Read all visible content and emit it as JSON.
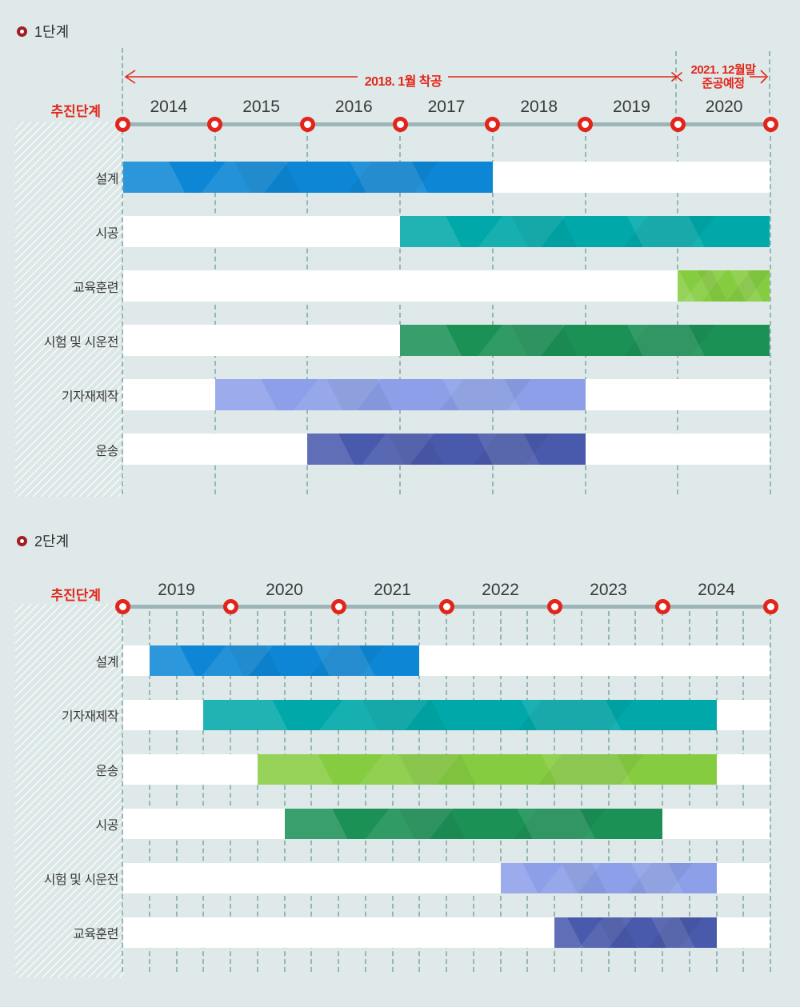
{
  "palette": {
    "background": "#dfe9e9",
    "red_accent": "#e2261a",
    "title_bullet": "#a31e23",
    "timeline_line": "#9db5b7",
    "dash_line": "#8aacae",
    "circle_ring": "#e2251b",
    "track_white": "#ffffff",
    "bar_colors": {
      "blue": "#0d87d5",
      "teal": "#00a8a9",
      "lime": "#86cc40",
      "green": "#1b9156",
      "periwinkle": "#8c9fe8",
      "indigo": "#4959ac"
    }
  },
  "chart_data": [
    {
      "type": "gantt",
      "phase_title": "1단계",
      "stage_label": "추진단계",
      "axis": {
        "start": 2014,
        "end": 2021,
        "year_labels": [
          "2014",
          "2015",
          "2016",
          "2017",
          "2018",
          "2019",
          "2020"
        ],
        "minor_tick_years": 1
      },
      "annotation": {
        "range_label": "2018. 1월 착공",
        "end_label_line1": "2021. 12월말",
        "end_label_line2": "준공예정",
        "arrow_from_year": 2014,
        "cross_year": 2020,
        "end_arrow_year": 2021
      },
      "rows": [
        {
          "label": "설계",
          "color": "blue",
          "start": 2014,
          "end": 2018
        },
        {
          "label": "시공",
          "color": "teal",
          "start": 2017,
          "end": 2021
        },
        {
          "label": "교육훈련",
          "color": "lime",
          "start": 2020,
          "end": 2021
        },
        {
          "label": "시험 및 시운전",
          "color": "green",
          "start": 2017,
          "end": 2021
        },
        {
          "label": "기자재제작",
          "color": "periwinkle",
          "start": 2015,
          "end": 2019
        },
        {
          "label": "운송",
          "color": "indigo",
          "start": 2016,
          "end": 2019
        }
      ]
    },
    {
      "type": "gantt",
      "phase_title": "2단계",
      "stage_label": "추진단계",
      "axis": {
        "start": 2019,
        "end": 2025,
        "year_labels": [
          "2019",
          "2020",
          "2021",
          "2022",
          "2023",
          "2024"
        ],
        "minor_tick_years": 0.25
      },
      "rows": [
        {
          "label": "설계",
          "color": "blue",
          "start": 2019.25,
          "end": 2021.75
        },
        {
          "label": "기자재제작",
          "color": "teal",
          "start": 2019.75,
          "end": 2024.5
        },
        {
          "label": "운송",
          "color": "lime",
          "start": 2020.25,
          "end": 2024.5
        },
        {
          "label": "시공",
          "color": "green",
          "start": 2020.5,
          "end": 2024
        },
        {
          "label": "시험 및 시운전",
          "color": "periwinkle",
          "start": 2022.5,
          "end": 2024.5
        },
        {
          "label": "교육훈련",
          "color": "indigo",
          "start": 2023,
          "end": 2024.5
        }
      ]
    }
  ]
}
